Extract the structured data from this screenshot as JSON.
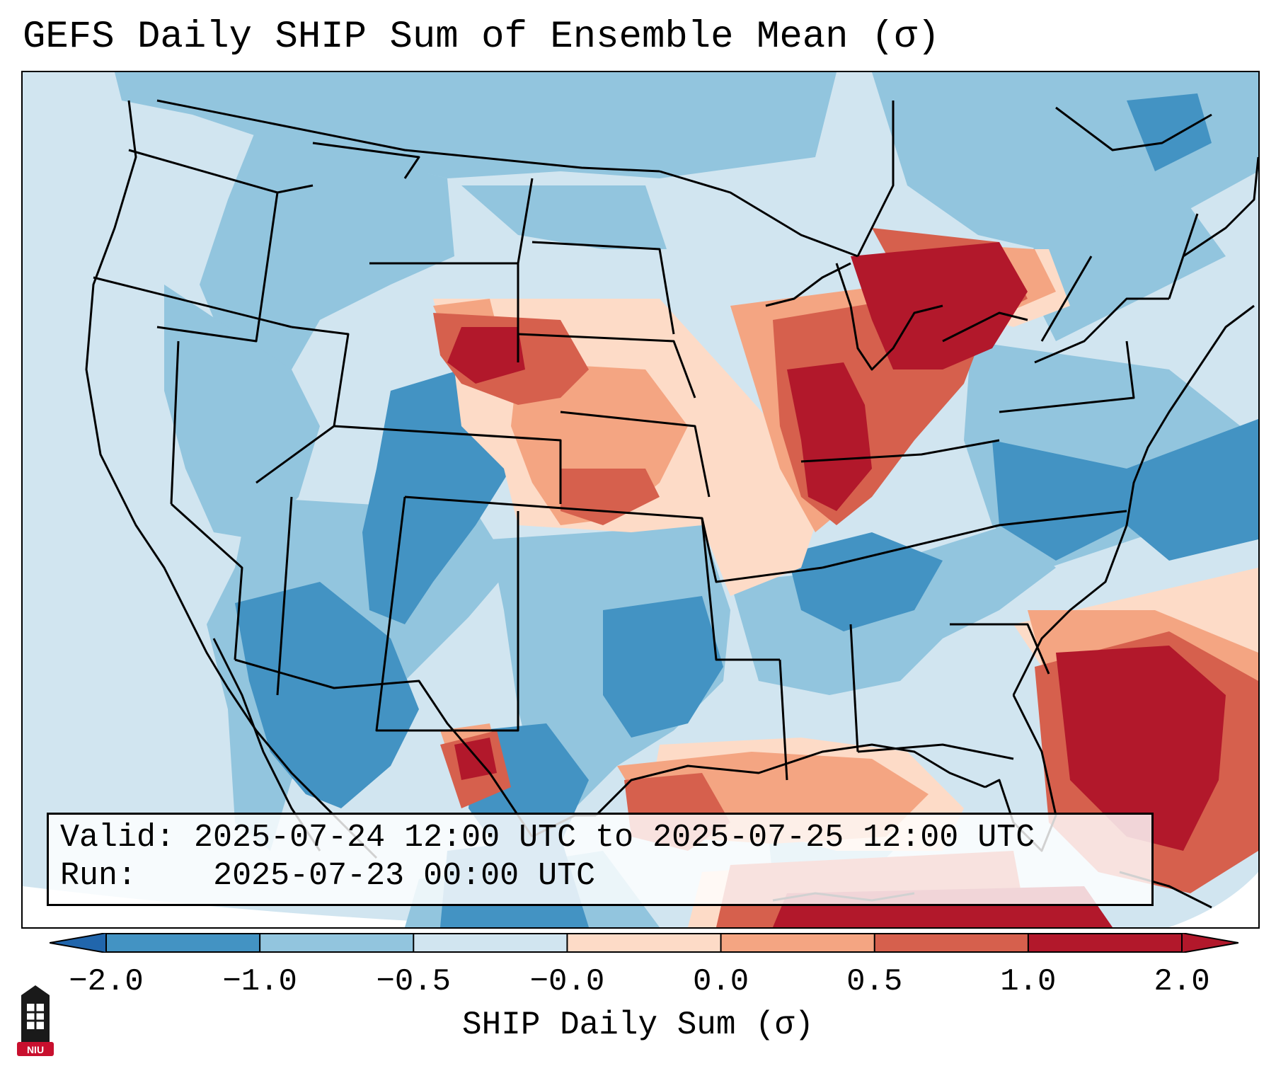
{
  "title": "GEFS Daily SHIP Sum of Ensemble Mean (σ)",
  "info": {
    "valid_label": "Valid:",
    "valid_value": "2025-07-24 12:00 UTC to 2025-07-25 12:00 UTC",
    "run_label": "Run:",
    "run_value": "2025-07-23 00:00 UTC"
  },
  "colorbar": {
    "label": "SHIP Daily Sum (σ)",
    "ticks": [
      "−2.0",
      "−1.0",
      "−0.5",
      "−0.0",
      "0.0",
      "0.5",
      "1.0",
      "2.0"
    ],
    "colors": [
      "#4393c3",
      "#92c5de",
      "#d1e5f0",
      "#ffffff",
      "#fddbc7",
      "#f4a582",
      "#d6604d",
      "#b2182b"
    ],
    "under_color": "#2166ac",
    "over_color": "#b2182b",
    "extend": "both"
  },
  "map": {
    "projection": "lambert-conformal",
    "region": "CONUS",
    "background_color": "#d1e5f0",
    "outline_color": "#000000"
  },
  "logo": {
    "text": "NIU",
    "color": "#c8102e"
  }
}
